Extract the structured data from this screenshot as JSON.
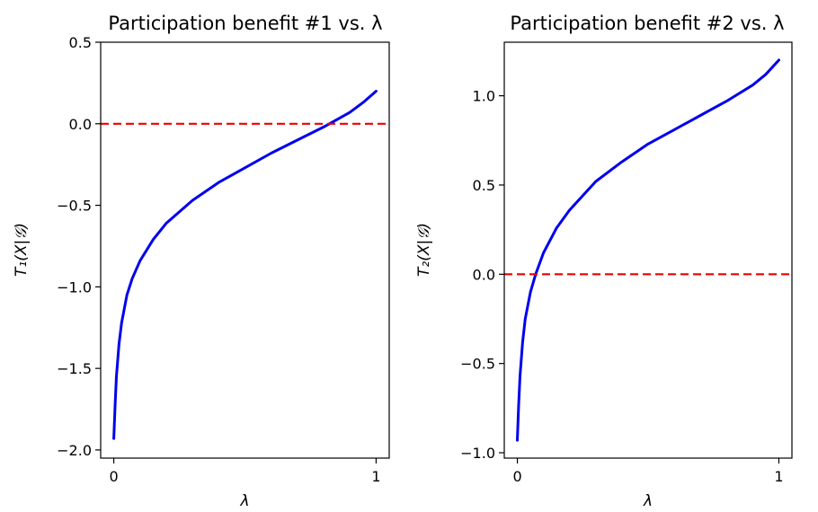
{
  "chart_data": [
    {
      "type": "line",
      "title": "Participation benefit #1 vs. λ",
      "xlabel": "λ",
      "ylabel": "T₁(X|𝒢)",
      "xlim": [
        -0.05,
        1.05
      ],
      "ylim": [
        -2.05,
        0.5
      ],
      "xticks": [
        0,
        1
      ],
      "xtick_labels": [
        "0",
        "1"
      ],
      "yticks": [
        -2.0,
        -1.5,
        -1.0,
        -0.5,
        0.0,
        0.5
      ],
      "ytick_labels": [
        "−2.0",
        "−1.5",
        "−1.0",
        "−0.5",
        "0.0",
        "0.5"
      ],
      "grid": false,
      "series": [
        {
          "color": "#0000ee",
          "style": "solid",
          "x": [
            0.0,
            0.005,
            0.01,
            0.02,
            0.03,
            0.05,
            0.07,
            0.1,
            0.15,
            0.2,
            0.3,
            0.4,
            0.5,
            0.6,
            0.7,
            0.8,
            0.9,
            0.95,
            1.0
          ],
          "y": [
            -1.93,
            -1.72,
            -1.55,
            -1.35,
            -1.22,
            -1.05,
            -0.95,
            -0.84,
            -0.71,
            -0.61,
            -0.47,
            -0.36,
            -0.27,
            -0.18,
            -0.1,
            -0.02,
            0.07,
            0.13,
            0.2
          ]
        },
        {
          "color": "#ee0000",
          "style": "dashed",
          "x": [
            -0.05,
            1.05
          ],
          "y": [
            0.0,
            0.0
          ]
        }
      ]
    },
    {
      "type": "line",
      "title": "Participation benefit #2 vs. λ",
      "xlabel": "λ",
      "ylabel": "T₂(X|𝒢)",
      "xlim": [
        -0.05,
        1.05
      ],
      "ylim": [
        -1.03,
        1.3
      ],
      "xticks": [
        0,
        1
      ],
      "xtick_labels": [
        "0",
        "1"
      ],
      "yticks": [
        -1.0,
        -0.5,
        0.0,
        0.5,
        1.0
      ],
      "ytick_labels": [
        "−1.0",
        "−0.5",
        "0.0",
        "0.5",
        "1.0"
      ],
      "grid": false,
      "series": [
        {
          "color": "#0000ee",
          "style": "solid",
          "x": [
            0.0,
            0.005,
            0.01,
            0.02,
            0.03,
            0.05,
            0.07,
            0.1,
            0.15,
            0.2,
            0.3,
            0.4,
            0.5,
            0.6,
            0.7,
            0.8,
            0.9,
            0.95,
            1.0
          ],
          "y": [
            -0.93,
            -0.73,
            -0.57,
            -0.38,
            -0.25,
            -0.1,
            0.0,
            0.12,
            0.26,
            0.36,
            0.52,
            0.63,
            0.73,
            0.81,
            0.89,
            0.97,
            1.06,
            1.12,
            1.2
          ]
        },
        {
          "color": "#ee0000",
          "style": "dashed",
          "x": [
            -0.05,
            1.05
          ],
          "y": [
            0.0,
            0.0
          ]
        }
      ]
    }
  ]
}
